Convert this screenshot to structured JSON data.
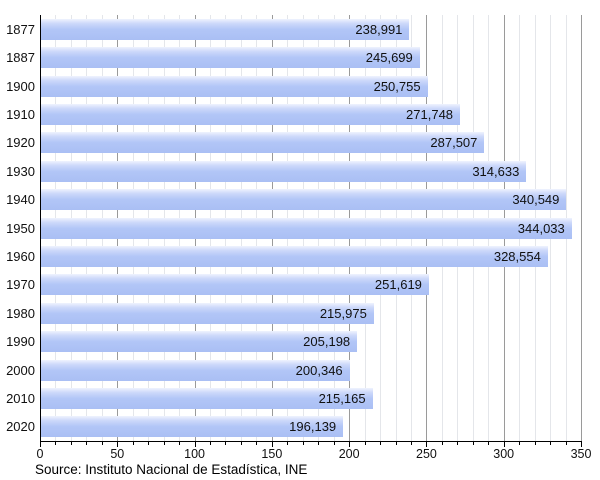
{
  "chart_data": {
    "type": "bar",
    "orientation": "horizontal",
    "title": "",
    "xlabel": "",
    "ylabel": "",
    "grid": true,
    "legend": "none",
    "categories": [
      "1877",
      "1887",
      "1900",
      "1910",
      "1920",
      "1930",
      "1940",
      "1950",
      "1960",
      "1970",
      "1980",
      "1990",
      "2000",
      "2010",
      "2020"
    ],
    "values": [
      238991,
      245699,
      250755,
      271748,
      287507,
      314633,
      340549,
      344033,
      328554,
      251619,
      215975,
      205198,
      200346,
      215165,
      196139
    ],
    "value_labels": [
      "238,991",
      "245,699",
      "250,755",
      "271,748",
      "287,507",
      "314,633",
      "340,549",
      "344,033",
      "328,554",
      "251,619",
      "215,975",
      "205,198",
      "200,346",
      "215,165",
      "196,139"
    ],
    "x_axis": {
      "min": 0,
      "max": 350000,
      "major_step": 50000,
      "minor_step": 10000,
      "tick_labels": [
        "0",
        "50",
        "100",
        "150",
        "200",
        "250",
        "300",
        "350"
      ]
    },
    "colors": {
      "bar_fill": "#aec3f5",
      "bar_gradient_top": "#eff3fe",
      "gridline_minor": "#e4e6ea",
      "gridline_major": "#9a9a9a",
      "axis": "#000000",
      "text": "#111111"
    },
    "source": "Source: Instituto Nacional de Estadística, INE"
  }
}
